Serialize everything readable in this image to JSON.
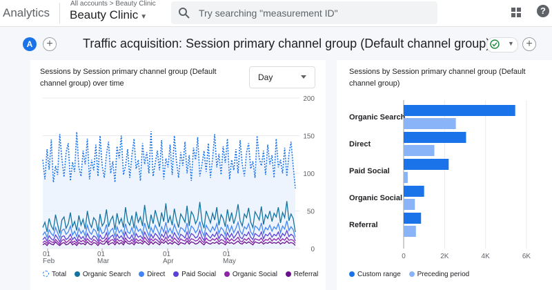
{
  "header": {
    "brand": "Analytics",
    "breadcrumb": "All accounts > Beauty Clinic",
    "property": "Beauty Clinic",
    "search_placeholder": "Try searching \"measurement ID\""
  },
  "report": {
    "avatar": "A",
    "title": "Traffic acquisition: Session primary channel group (Default channel group)"
  },
  "line_card": {
    "title_line1": "Sessions by Session primary channel group (Default",
    "title_line2": "channel group) over time",
    "granularity": "Day",
    "legend": [
      "Total",
      "Organic Search",
      "Direct",
      "Paid Social",
      "Organic Social",
      "Referral"
    ]
  },
  "bar_card": {
    "title_line1": "Sessions by Session primary channel group (Default",
    "title_line2": "channel group)",
    "legend": [
      "Custom range",
      "Preceding period"
    ]
  },
  "colors": {
    "total": "#1a73e8",
    "organic_search": "#12739f",
    "direct": "#4285f4",
    "paid_social": "#5b3fd6",
    "organic_social": "#8e24aa",
    "referral": "#6a0f8e",
    "custom_range": "#1a73e8",
    "preceding_period": "#8ab4f8"
  },
  "chart_data": [
    {
      "type": "line",
      "title": "Sessions by Session primary channel group (Default channel group) over time",
      "x_tick_labels": [
        [
          "01",
          "Feb"
        ],
        [
          "01",
          "Mar"
        ],
        [
          "01",
          "Apr"
        ],
        [
          "01",
          "May"
        ]
      ],
      "y_ticks": [
        0,
        50,
        100,
        150,
        200
      ],
      "ylim": [
        0,
        200
      ],
      "series": [
        {
          "name": "Total",
          "values": [
            118,
            92,
            132,
            105,
            145,
            88,
            110,
            98,
            152,
            120,
            95,
            128,
            140,
            90,
            115,
            102,
            155,
            108,
            96,
            130,
            112,
            146,
            92,
            118,
            104,
            138,
            96,
            150,
            110,
            94,
            126,
            142,
            100,
            116,
            88,
            136,
            120,
            150,
            98,
            110,
            132,
            94,
            124,
            146,
            106,
            118,
            90,
            140,
            112,
            128,
            100,
            156,
            96,
            114,
            130,
            104,
            144,
            92,
            120,
            108,
            138,
            98,
            150,
            116,
            94,
            128,
            110,
            142,
            100,
            124,
            90,
            134,
            118,
            148,
            96,
            112,
            130,
            102,
            140,
            94,
            120,
            152,
            108,
            126,
            98,
            136,
            114,
            146,
            92,
            118,
            104,
            132,
            100,
            144,
            112,
            96,
            128,
            140,
            106,
            116,
            94,
            150,
            120,
            110,
            130,
            98,
            138,
            112,
            124,
            94,
            146,
            108,
            118,
            100,
            134,
            96,
            126,
            142,
            110,
            80
          ]
        },
        {
          "name": "Organic Search",
          "values": [
            28,
            35,
            22,
            40,
            30,
            25,
            45,
            32,
            20,
            38,
            42,
            27,
            33,
            48,
            29,
            36,
            24,
            44,
            31,
            39,
            26,
            50,
            34,
            28,
            41,
            37,
            23,
            46,
            30,
            35,
            52,
            29,
            38,
            43,
            25,
            47,
            33,
            40,
            28,
            55,
            36,
            31,
            44,
            27,
            49,
            35,
            42,
            30,
            58,
            37,
            26,
            45,
            33,
            51,
            40,
            29,
            48,
            36,
            60,
            34,
            43,
            31,
            53,
            38,
            28,
            46,
            41,
            35,
            57,
            30,
            49,
            44,
            33,
            39,
            62,
            36,
            27,
            50,
            42,
            34,
            47,
            38,
            55,
            31,
            45,
            40,
            29,
            52,
            36,
            48,
            33,
            43,
            59,
            37,
            30,
            46,
            41,
            54,
            35,
            28,
            49,
            44,
            38,
            56,
            32,
            45,
            40,
            50,
            36,
            47,
            42,
            55,
            34,
            48,
            41,
            63,
            37,
            46,
            40,
            22
          ]
        },
        {
          "name": "Direct",
          "values": [
            18,
            22,
            15,
            25,
            20,
            17,
            28,
            21,
            14,
            24,
            26,
            19,
            22,
            30,
            18,
            23,
            16,
            27,
            20,
            24,
            17,
            31,
            22,
            19,
            26,
            23,
            15,
            28,
            20,
            22,
            32,
            18,
            24,
            27,
            16,
            29,
            21,
            25,
            18,
            33,
            22,
            20,
            28,
            17,
            30,
            23,
            26,
            19,
            34,
            24,
            17,
            28,
            21,
            31,
            25,
            18,
            29,
            22,
            35,
            21,
            27,
            20,
            32,
            24,
            18,
            28,
            26,
            22,
            34,
            19,
            30,
            27,
            21,
            25,
            36,
            23,
            17,
            31,
            26,
            22,
            29,
            24,
            33,
            20,
            28,
            25,
            18,
            32,
            22,
            30,
            21,
            27,
            35,
            23,
            19,
            29,
            26,
            33,
            22,
            18,
            30,
            28,
            24,
            34,
            20,
            28,
            25,
            31,
            23,
            29,
            26,
            33,
            21,
            30,
            26,
            37,
            24,
            29,
            25,
            15
          ]
        },
        {
          "name": "Paid Social",
          "values": [
            12,
            15,
            10,
            17,
            13,
            11,
            18,
            14,
            9,
            16,
            17,
            12,
            14,
            19,
            12,
            15,
            10,
            18,
            13,
            16,
            11,
            20,
            14,
            12,
            17,
            15,
            10,
            18,
            13,
            14,
            21,
            12,
            16,
            18,
            11,
            19,
            14,
            17,
            12,
            22,
            15,
            13,
            18,
            11,
            20,
            15,
            17,
            13,
            22,
            16,
            11,
            19,
            14,
            20,
            17,
            12,
            19,
            15,
            23,
            14,
            18,
            13,
            21,
            16,
            12,
            19,
            17,
            14,
            22,
            13,
            20,
            18,
            14,
            16,
            24,
            15,
            11,
            21,
            17,
            14,
            19,
            16,
            22,
            13,
            19,
            17,
            12,
            21,
            15,
            20,
            14,
            18,
            23,
            15,
            13,
            19,
            17,
            22,
            15,
            12,
            20,
            18,
            16,
            22,
            13,
            19,
            17,
            21,
            15,
            19,
            17,
            22,
            14,
            20,
            17,
            24,
            16,
            19,
            17,
            10
          ]
        },
        {
          "name": "Organic Social",
          "values": [
            8,
            10,
            7,
            11,
            9,
            8,
            12,
            9,
            6,
            11,
            12,
            8,
            10,
            13,
            8,
            10,
            7,
            12,
            9,
            11,
            8,
            13,
            10,
            8,
            12,
            10,
            7,
            12,
            9,
            10,
            14,
            8,
            11,
            12,
            8,
            13,
            10,
            11,
            8,
            14,
            10,
            9,
            12,
            8,
            13,
            10,
            12,
            9,
            15,
            11,
            8,
            13,
            10,
            13,
            11,
            8,
            13,
            10,
            15,
            10,
            12,
            9,
            14,
            11,
            8,
            13,
            11,
            10,
            14,
            9,
            13,
            12,
            10,
            11,
            15,
            10,
            8,
            14,
            11,
            10,
            13,
            11,
            14,
            9,
            12,
            11,
            8,
            14,
            10,
            13,
            10,
            12,
            15,
            10,
            9,
            13,
            11,
            14,
            10,
            8,
            13,
            12,
            11,
            14,
            9,
            12,
            11,
            14,
            10,
            13,
            11,
            14,
            10,
            13,
            11,
            15,
            11,
            12,
            11,
            7
          ]
        },
        {
          "name": "Referral",
          "values": [
            5,
            7,
            4,
            8,
            6,
            5,
            9,
            6,
            4,
            7,
            8,
            5,
            6,
            9,
            5,
            7,
            4,
            8,
            6,
            7,
            5,
            9,
            6,
            5,
            8,
            7,
            4,
            8,
            6,
            6,
            10,
            5,
            7,
            8,
            5,
            9,
            6,
            8,
            5,
            10,
            7,
            6,
            8,
            5,
            9,
            7,
            8,
            6,
            10,
            7,
            5,
            9,
            6,
            9,
            7,
            5,
            9,
            7,
            10,
            6,
            8,
            6,
            9,
            7,
            5,
            8,
            7,
            6,
            10,
            6,
            9,
            8,
            6,
            7,
            10,
            7,
            5,
            9,
            7,
            6,
            8,
            7,
            9,
            6,
            8,
            7,
            5,
            9,
            7,
            8,
            6,
            8,
            10,
            7,
            6,
            9,
            7,
            9,
            7,
            5,
            9,
            8,
            7,
            9,
            6,
            8,
            7,
            9,
            7,
            8,
            7,
            9,
            6,
            8,
            7,
            10,
            7,
            8,
            7,
            4
          ]
        }
      ]
    },
    {
      "type": "bar",
      "title": "Sessions by Session primary channel group (Default channel group)",
      "categories": [
        "Organic Search",
        "Direct",
        "Paid Social",
        "Organic Social",
        "Referral"
      ],
      "series": [
        {
          "name": "Custom range",
          "values": [
            5450,
            3050,
            2200,
            1000,
            850
          ]
        },
        {
          "name": "Preceding period",
          "values": [
            2550,
            1500,
            200,
            550,
            600
          ]
        }
      ],
      "x_ticks": [
        "0",
        "2K",
        "4K",
        "6K"
      ],
      "xlim": [
        0,
        6000
      ]
    }
  ]
}
